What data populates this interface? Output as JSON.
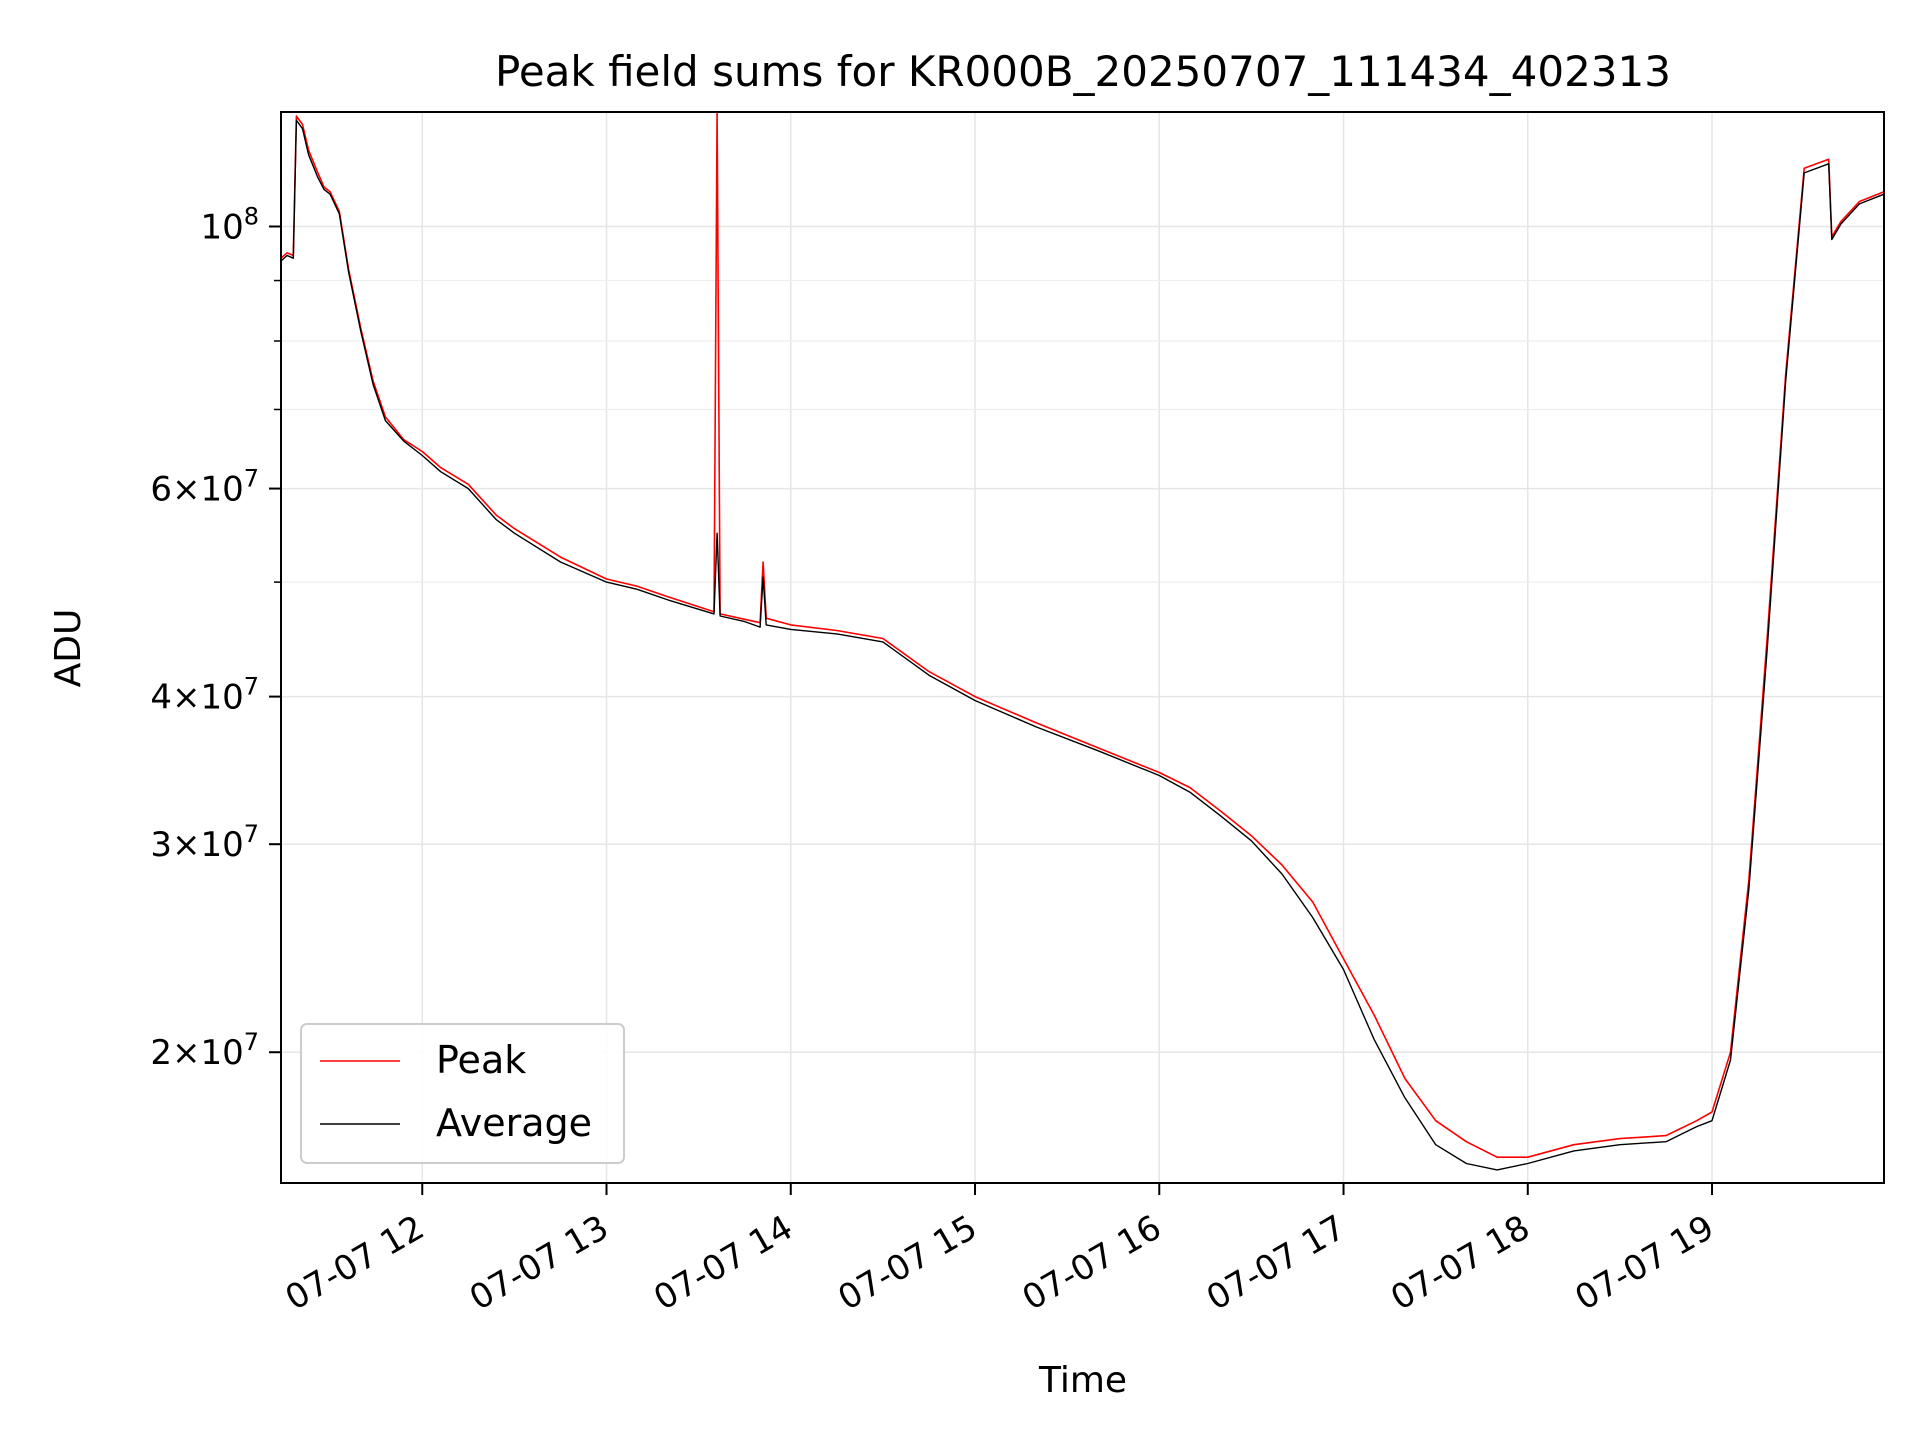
{
  "chart_data": {
    "type": "line",
    "title": "Peak field sums for KR000B_20250707_111434_402313",
    "xlabel": "Time",
    "ylabel": "ADU",
    "xlim": [
      "2025-07-07 11:14",
      "2025-07-07 19:56"
    ],
    "ylim": [
      15500000,
      125000000
    ],
    "yscale": "log",
    "grid": true,
    "legend_position": "lower-left",
    "x_ticks": [
      "2025-07-07 12:00",
      "2025-07-07 13:00",
      "2025-07-07 14:00",
      "2025-07-07 15:00",
      "2025-07-07 16:00",
      "2025-07-07 17:00",
      "2025-07-07 18:00",
      "2025-07-07 19:00"
    ],
    "x_tick_labels": [
      "07-07 12",
      "07-07 13",
      "07-07 14",
      "07-07 15",
      "07-07 16",
      "07-07 17",
      "07-07 18",
      "07-07 19"
    ],
    "y_ticks": [
      20000000,
      30000000,
      40000000,
      60000000,
      100000000
    ],
    "y_tick_labels": [
      {
        "mantissa": "2",
        "exponent": "7"
      },
      {
        "mantissa": "3",
        "exponent": "7"
      },
      {
        "mantissa": "4",
        "exponent": "7"
      },
      {
        "mantissa": "6",
        "exponent": "7"
      },
      {
        "mantissa": "",
        "exponent": "8"
      }
    ],
    "y_minor_ticks": [
      50000000,
      70000000,
      80000000,
      90000000
    ],
    "series": [
      {
        "name": "Peak",
        "color": "#ff0000",
        "x": [
          "2025-07-07 11:14",
          "2025-07-07 11:16",
          "2025-07-07 11:18",
          "2025-07-07 11:19",
          "2025-07-07 11:21",
          "2025-07-07 11:23",
          "2025-07-07 11:26",
          "2025-07-07 11:28",
          "2025-07-07 11:30",
          "2025-07-07 11:33",
          "2025-07-07 11:36",
          "2025-07-07 11:40",
          "2025-07-07 11:44",
          "2025-07-07 11:48",
          "2025-07-07 11:54",
          "2025-07-07 12:00",
          "2025-07-07 12:06",
          "2025-07-07 12:15",
          "2025-07-07 12:24",
          "2025-07-07 12:30",
          "2025-07-07 12:45",
          "2025-07-07 13:00",
          "2025-07-07 13:10",
          "2025-07-07 13:20",
          "2025-07-07 13:35",
          "2025-07-07 13:36",
          "2025-07-07 13:37",
          "2025-07-07 13:45",
          "2025-07-07 13:50",
          "2025-07-07 13:51",
          "2025-07-07 13:52",
          "2025-07-07 14:00",
          "2025-07-07 14:15",
          "2025-07-07 14:30",
          "2025-07-07 14:45",
          "2025-07-07 15:00",
          "2025-07-07 15:20",
          "2025-07-07 15:40",
          "2025-07-07 16:00",
          "2025-07-07 16:10",
          "2025-07-07 16:20",
          "2025-07-07 16:30",
          "2025-07-07 16:40",
          "2025-07-07 16:50",
          "2025-07-07 17:00",
          "2025-07-07 17:10",
          "2025-07-07 17:20",
          "2025-07-07 17:30",
          "2025-07-07 17:40",
          "2025-07-07 17:50",
          "2025-07-07 18:00",
          "2025-07-07 18:15",
          "2025-07-07 18:30",
          "2025-07-07 18:45",
          "2025-07-07 18:55",
          "2025-07-07 19:00",
          "2025-07-07 19:06",
          "2025-07-07 19:12",
          "2025-07-07 19:18",
          "2025-07-07 19:24",
          "2025-07-07 19:30",
          "2025-07-07 19:38",
          "2025-07-07 19:39",
          "2025-07-07 19:42",
          "2025-07-07 19:48",
          "2025-07-07 19:56"
        ],
        "values": [
          94000000,
          95000000,
          94500000,
          124000000,
          122000000,
          116000000,
          111000000,
          108000000,
          107000000,
          103000000,
          92000000,
          82000000,
          74000000,
          69000000,
          66000000,
          64500000,
          62500000,
          60500000,
          57000000,
          55500000,
          52500000,
          50300000,
          49600000,
          48600000,
          47200000,
          125000000,
          47000000,
          46500000,
          46200000,
          52000000,
          46600000,
          46000000,
          45500000,
          44800000,
          42000000,
          40000000,
          38000000,
          36200000,
          34500000,
          33500000,
          32000000,
          30500000,
          28800000,
          26800000,
          24000000,
          21500000,
          19000000,
          17500000,
          16800000,
          16300000,
          16300000,
          16700000,
          16900000,
          17000000,
          17500000,
          17800000,
          20000000,
          28000000,
          45000000,
          75000000,
          112000000,
          114000000,
          98000000,
          101000000,
          105000000,
          107000000
        ]
      },
      {
        "name": "Average",
        "color": "#000000",
        "x": [
          "2025-07-07 11:14",
          "2025-07-07 11:16",
          "2025-07-07 11:18",
          "2025-07-07 11:19",
          "2025-07-07 11:21",
          "2025-07-07 11:23",
          "2025-07-07 11:26",
          "2025-07-07 11:28",
          "2025-07-07 11:30",
          "2025-07-07 11:33",
          "2025-07-07 11:36",
          "2025-07-07 11:40",
          "2025-07-07 11:44",
          "2025-07-07 11:48",
          "2025-07-07 11:54",
          "2025-07-07 12:00",
          "2025-07-07 12:06",
          "2025-07-07 12:15",
          "2025-07-07 12:24",
          "2025-07-07 12:30",
          "2025-07-07 12:45",
          "2025-07-07 13:00",
          "2025-07-07 13:10",
          "2025-07-07 13:20",
          "2025-07-07 13:35",
          "2025-07-07 13:36",
          "2025-07-07 13:37",
          "2025-07-07 13:45",
          "2025-07-07 13:50",
          "2025-07-07 13:51",
          "2025-07-07 13:52",
          "2025-07-07 14:00",
          "2025-07-07 14:15",
          "2025-07-07 14:30",
          "2025-07-07 14:45",
          "2025-07-07 15:00",
          "2025-07-07 15:20",
          "2025-07-07 15:40",
          "2025-07-07 16:00",
          "2025-07-07 16:10",
          "2025-07-07 16:20",
          "2025-07-07 16:30",
          "2025-07-07 16:40",
          "2025-07-07 16:50",
          "2025-07-07 17:00",
          "2025-07-07 17:10",
          "2025-07-07 17:20",
          "2025-07-07 17:30",
          "2025-07-07 17:40",
          "2025-07-07 17:50",
          "2025-07-07 18:00",
          "2025-07-07 18:15",
          "2025-07-07 18:30",
          "2025-07-07 18:45",
          "2025-07-07 18:55",
          "2025-07-07 19:00",
          "2025-07-07 19:06",
          "2025-07-07 19:12",
          "2025-07-07 19:18",
          "2025-07-07 19:24",
          "2025-07-07 19:30",
          "2025-07-07 19:38",
          "2025-07-07 19:39",
          "2025-07-07 19:42",
          "2025-07-07 19:48",
          "2025-07-07 19:56"
        ],
        "values": [
          93500000,
          94500000,
          94000000,
          123000000,
          121000000,
          115000000,
          110000000,
          107500000,
          106500000,
          102500000,
          91500000,
          81500000,
          73500000,
          68500000,
          65800000,
          64000000,
          62000000,
          60000000,
          56500000,
          55000000,
          52000000,
          50000000,
          49300000,
          48300000,
          47000000,
          55000000,
          46800000,
          46300000,
          45800000,
          50500000,
          46000000,
          45600000,
          45200000,
          44500000,
          41700000,
          39700000,
          37700000,
          36000000,
          34300000,
          33200000,
          31700000,
          30200000,
          28300000,
          26000000,
          23500000,
          20500000,
          18300000,
          16700000,
          16100000,
          15900000,
          16100000,
          16500000,
          16700000,
          16800000,
          17300000,
          17500000,
          19700000,
          27500000,
          44000000,
          74000000,
          111000000,
          113000000,
          97500000,
          100500000,
          104500000,
          106500000
        ]
      }
    ]
  }
}
